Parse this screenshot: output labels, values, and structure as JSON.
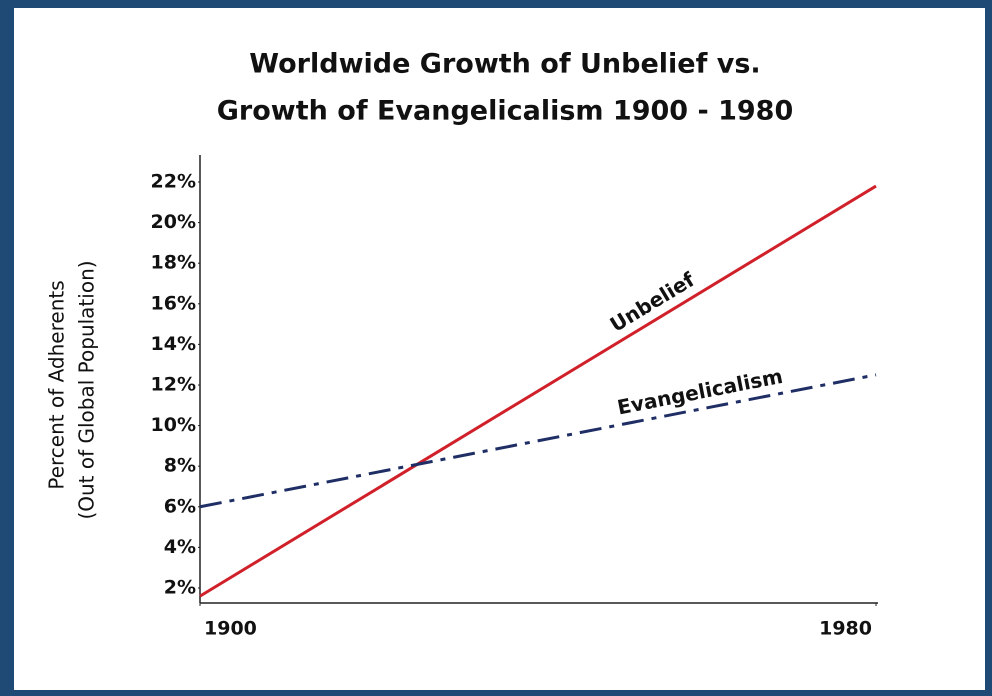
{
  "chart_data": {
    "type": "line",
    "title": [
      "Worldwide Growth of Unbelief vs.",
      "Growth of Evangelicalism  1900 - 1980"
    ],
    "ylabel": [
      "Percent of Adherents",
      "(Out of Global Population)"
    ],
    "x": [
      1900,
      1980
    ],
    "series": [
      {
        "name": "Unbelief",
        "color": "#d0202a",
        "values": [
          1.6,
          21.8
        ]
      },
      {
        "name": "Evangelicalism",
        "color": "#1f2f66",
        "values": [
          6.0,
          12.5
        ]
      }
    ],
    "xlim": [
      1900,
      1980
    ],
    "xticks": [
      1900,
      1980
    ],
    "ylim": [
      1.26,
      23.33
    ],
    "yticks": [
      {
        "value": 2,
        "label": "2%"
      },
      {
        "value": 4,
        "label": "4%"
      },
      {
        "value": 6,
        "label": "6%"
      },
      {
        "value": 8,
        "label": "8%"
      },
      {
        "value": 10,
        "label": "10%"
      },
      {
        "value": 12,
        "label": "12%"
      },
      {
        "value": 14,
        "label": "14%"
      },
      {
        "value": 16,
        "label": "16%"
      },
      {
        "value": 18,
        "label": "18%"
      },
      {
        "value": 20,
        "label": "20%"
      },
      {
        "value": 22,
        "label": "22%"
      }
    ],
    "grid": false
  }
}
